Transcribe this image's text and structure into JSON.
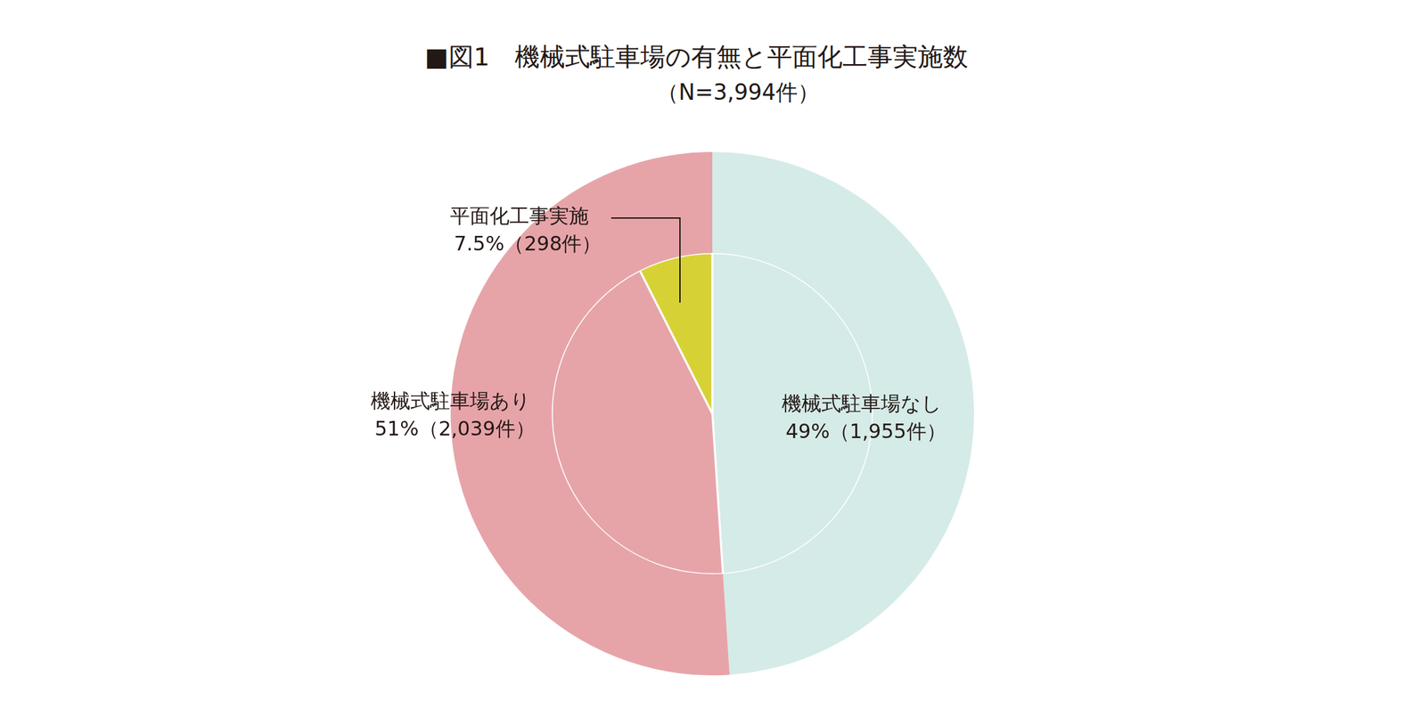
{
  "chart_data": {
    "type": "doughnut",
    "title": "■図1　機械式駐車場の有無と平面化工事実施数",
    "subtitle": "（N=3,994件）",
    "categories": [
      "機械式駐車場なし",
      "機械式駐車場あり"
    ],
    "values": [
      1955,
      2039
    ],
    "value_labels": [
      "49%（1,955件）",
      "51%（2,039件）"
    ],
    "colors": [
      "#d5ebe8",
      "#e6a4a9"
    ],
    "inner": {
      "categories": [
        "平面化工事実施"
      ],
      "values": [
        298
      ],
      "value_labels": [
        "7.5%（298件）"
      ],
      "color": "#d6d236"
    },
    "data_labels": true
  }
}
